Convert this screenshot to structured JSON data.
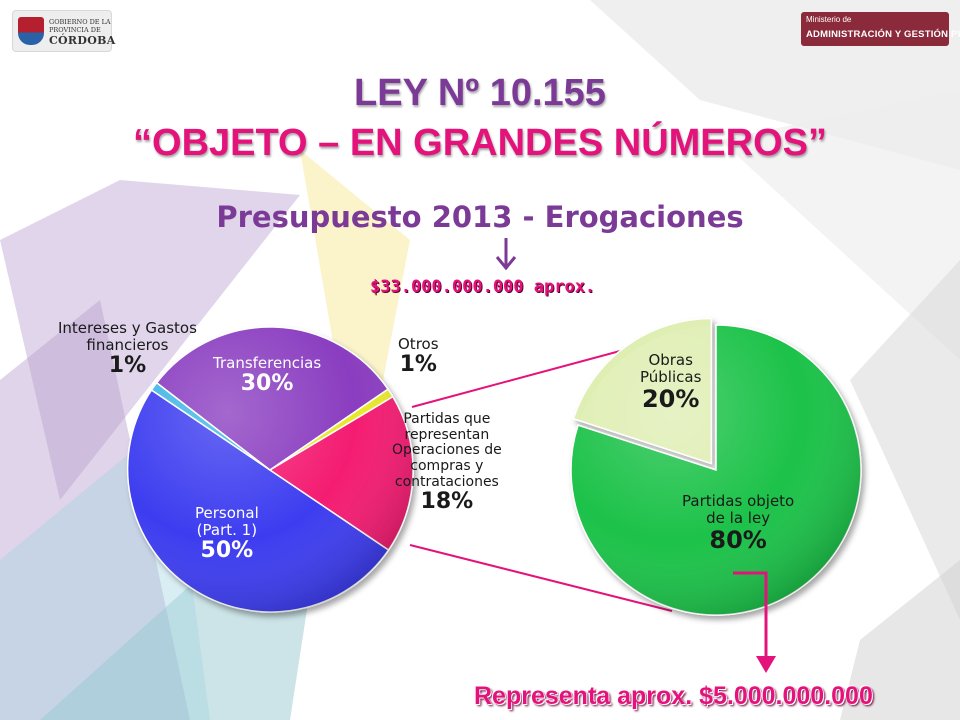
{
  "header": {
    "logo_left": {
      "line1": "GOBIERNO DE LA",
      "line2": "PROVINCIA DE",
      "line3": "CÓRDOBA"
    },
    "logo_right": {
      "line1": "Ministerio de",
      "line2": "ADMINISTRACIÓN Y GESTIÓN PÚBLICA"
    }
  },
  "slide": {
    "title_line1": "LEY Nº 10.155",
    "title_line2": "“OBJETO – EN GRANDES NÚMEROS”",
    "subtitle": "Presupuesto 2013 - Erogaciones",
    "total_label": "$33.000.000.000 aprox.",
    "footer_note": "Representa aprox. $5.000.000.000"
  },
  "colors": {
    "title_purple": "#7b3a96",
    "accent_pink": "#e4137b",
    "personal": "#3d3df0",
    "transferencias": "#8a3ec0",
    "intereses": "#3fb6e6",
    "otros": "#e8e82a",
    "partidas": "#f41a72",
    "obra_publica": "#dfeeb3",
    "partidas_ley": "#1fc24a"
  },
  "chart_data": [
    {
      "type": "pie",
      "title": "Presupuesto 2013 - Erogaciones",
      "slices": [
        {
          "label_lines": [
            "Personal",
            "(Part. 1)"
          ],
          "value": 50,
          "value_label": "50%",
          "color": "#3d3df0"
        },
        {
          "label_lines": [
            "Intereses y Gastos",
            "financieros"
          ],
          "value": 1,
          "value_label": "1%",
          "color": "#3fb6e6"
        },
        {
          "label_lines": [
            "Transferencias"
          ],
          "value": 30,
          "value_label": "30%",
          "color": "#8a3ec0"
        },
        {
          "label_lines": [
            "Otros"
          ],
          "value": 1,
          "value_label": "1%",
          "color": "#e8e82a"
        },
        {
          "label_lines": [
            "Partidas que",
            "representan",
            "Operaciones de",
            "compras y",
            "contrataciones"
          ],
          "value": 18,
          "value_label": "18%",
          "color": "#f41a72"
        }
      ]
    },
    {
      "type": "pie",
      "slices": [
        {
          "label_lines": [
            "Obras",
            "Públicas"
          ],
          "value": 20,
          "value_label": "20%",
          "color": "#dfeeb3"
        },
        {
          "label_lines": [
            "Partidas objeto",
            "de la ley"
          ],
          "value": 80,
          "value_label": "80%",
          "color": "#1fc24a"
        }
      ]
    }
  ]
}
